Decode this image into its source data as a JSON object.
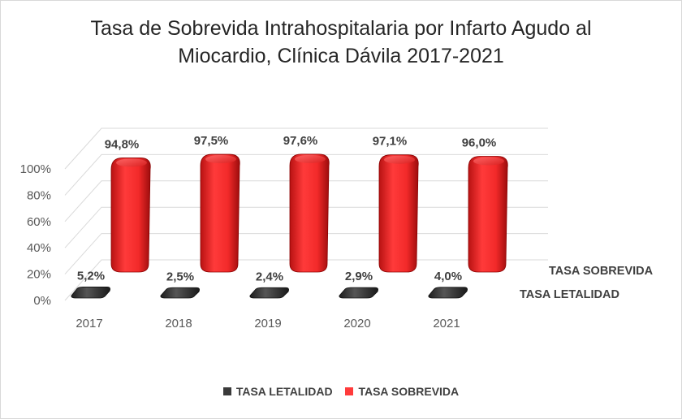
{
  "chart_data": {
    "type": "bar",
    "title_lines": [
      "Tasa de Sobrevida Intrahospitalaria por Infarto Agudo al",
      "Miocardio, Clínica Dávila 2017-2021"
    ],
    "categories": [
      "2017",
      "2018",
      "2019",
      "2020",
      "2021"
    ],
    "series": [
      {
        "name": "TASA LETALIDAD",
        "values": [
          5.2,
          2.5,
          2.4,
          2.9,
          4.0
        ],
        "labels": [
          "5,2%",
          "2,5%",
          "2,4%",
          "2,9%",
          "4,0%"
        ],
        "color": "#3a3a3a"
      },
      {
        "name": "TASA SOBREVIDA",
        "values": [
          94.8,
          97.5,
          97.6,
          97.1,
          96.0
        ],
        "labels": [
          "94,8%",
          "97,5%",
          "97,6%",
          "97,1%",
          "96,0%"
        ],
        "color": "#ff3b3b"
      }
    ],
    "yticks": [
      "0%",
      "20%",
      "40%",
      "60%",
      "80%",
      "100%"
    ],
    "ylim": [
      0,
      100
    ],
    "depth_labels": [
      "TASA SOBREVIDA",
      "TASA LETALIDAD"
    ],
    "grid": true,
    "legend_position": "bottom"
  }
}
